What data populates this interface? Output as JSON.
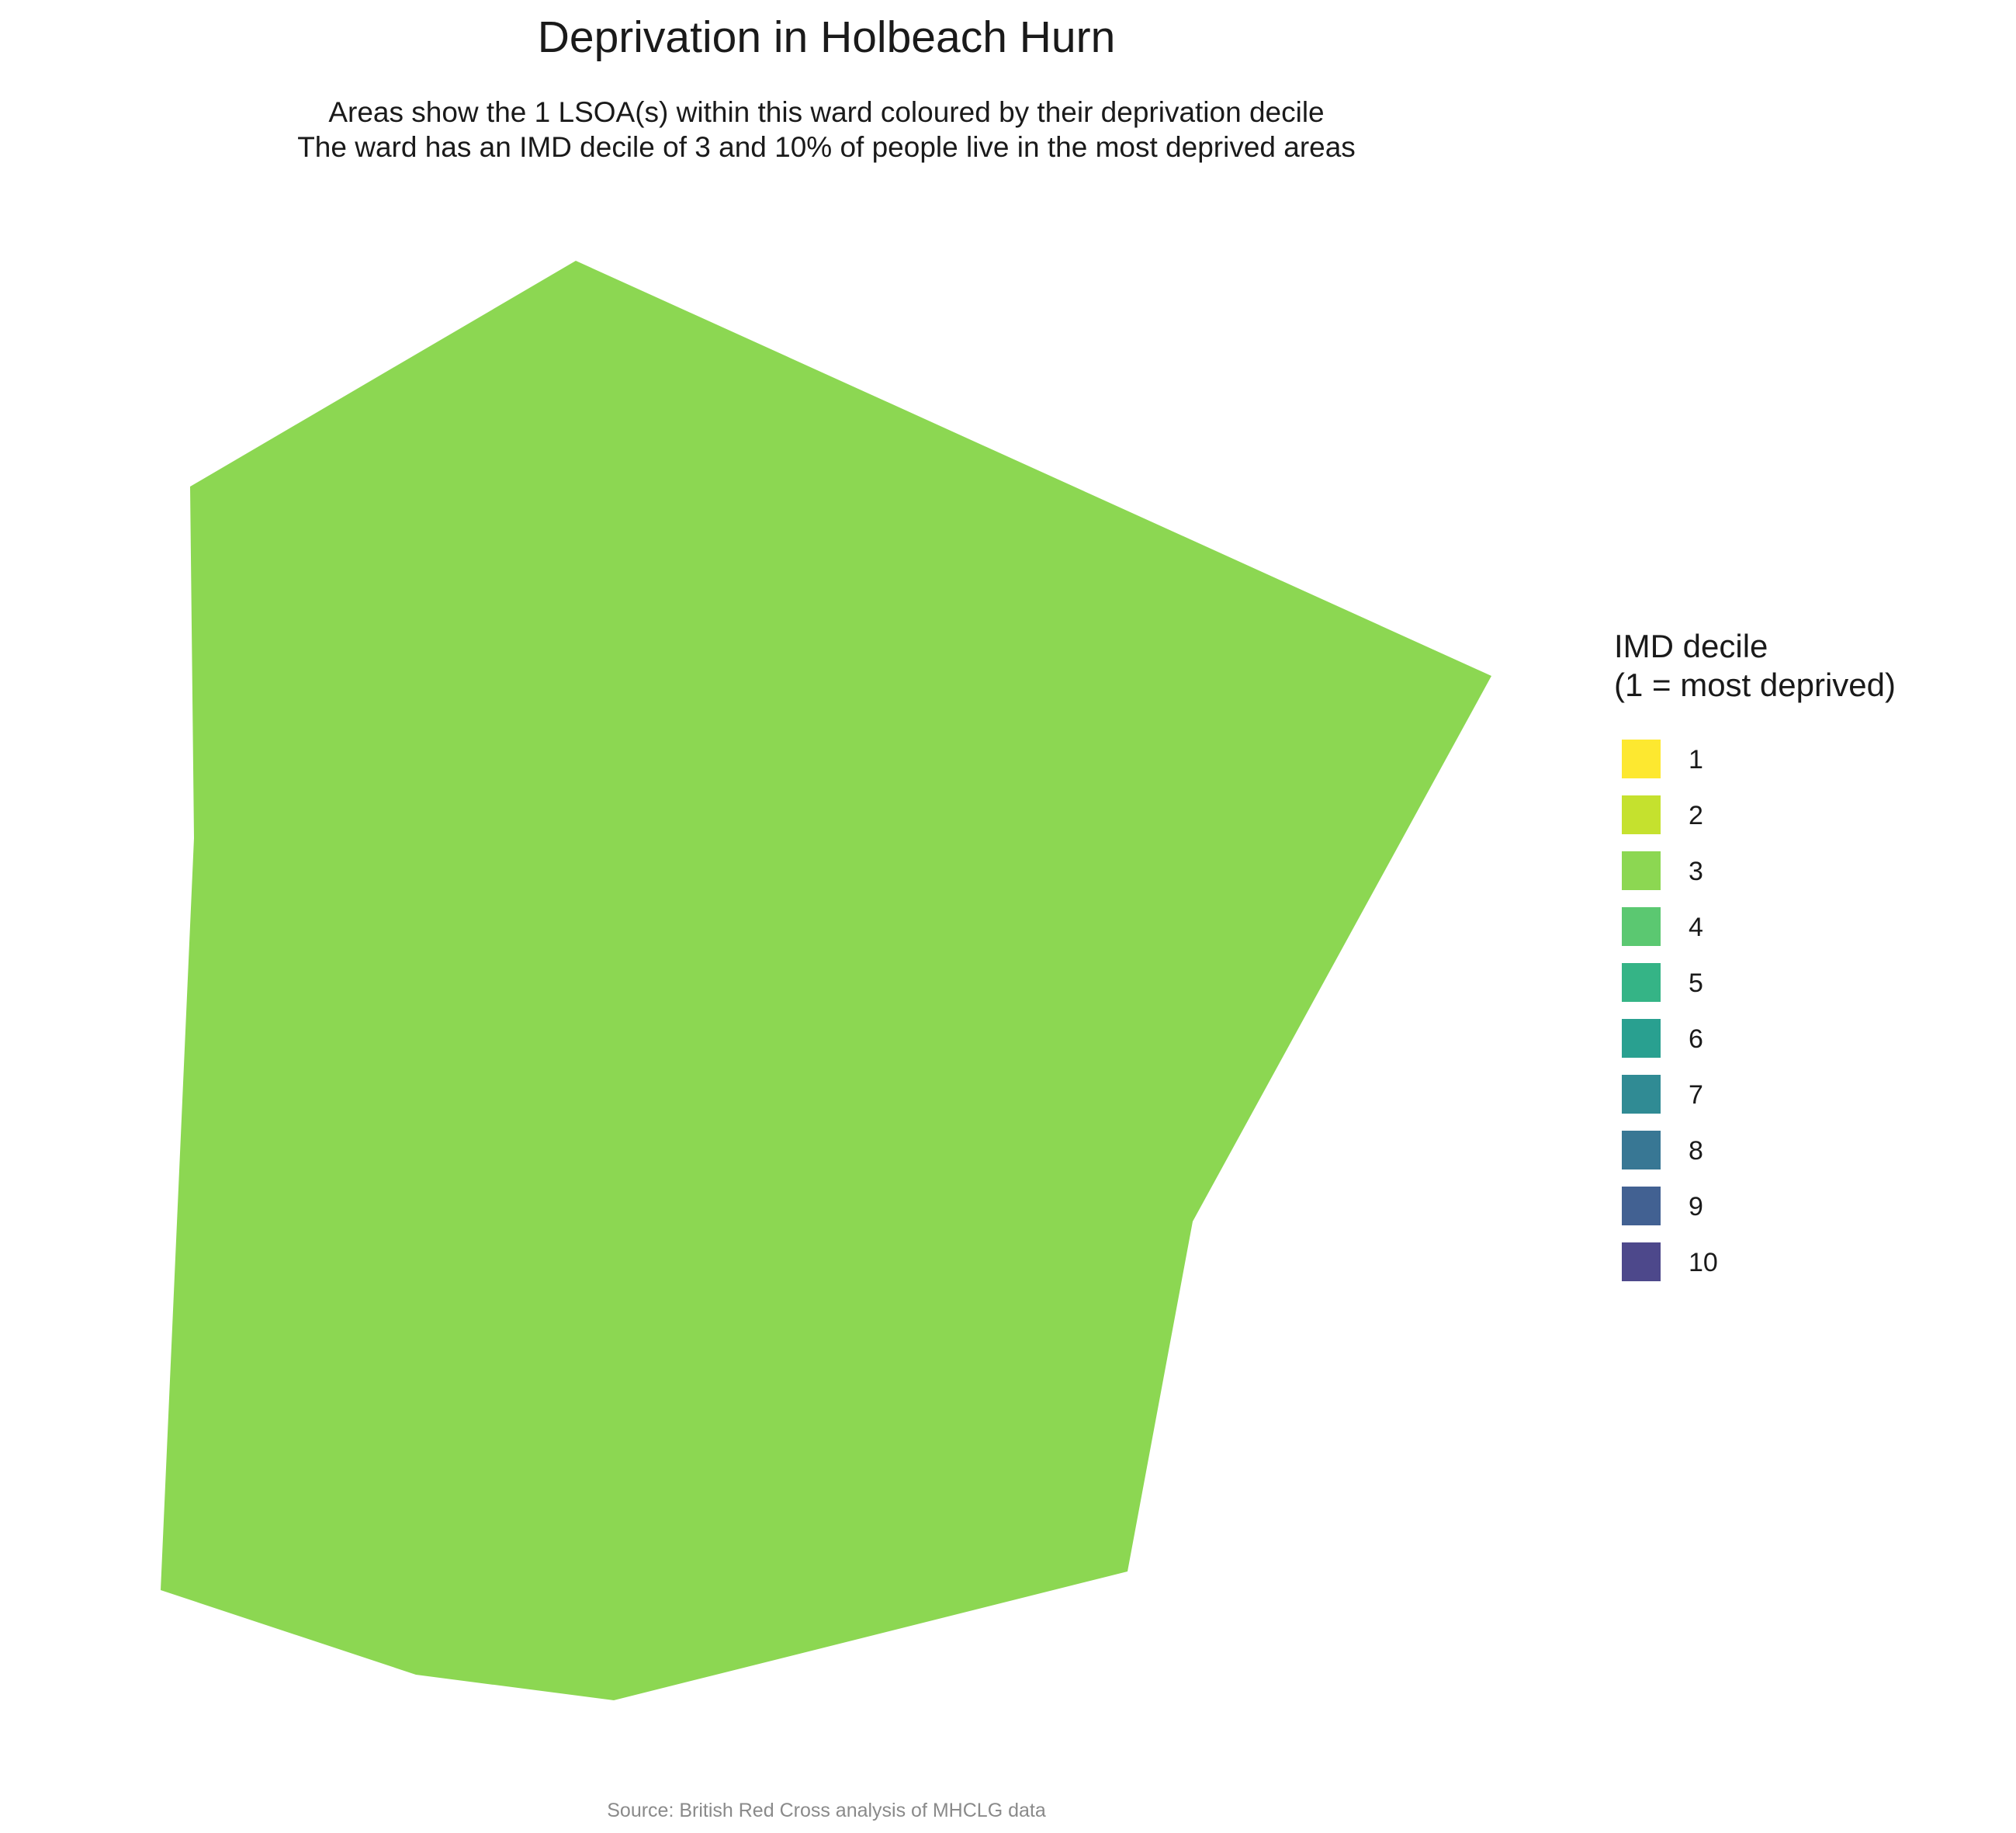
{
  "title": "Deprivation in Holbeach Hurn",
  "subtitle_line1": "Areas show the 1 LSOA(s) within this ward coloured by their deprivation decile",
  "subtitle_line2": "The ward has an IMD decile of 3 and 10% of people live in the most deprived areas",
  "caption": "Source: British Red Cross analysis of MHCLG data",
  "legend": {
    "title_line1": "IMD decile",
    "title_line2": "(1 = most deprived)",
    "items": [
      {
        "label": "1",
        "color": "#fde725"
      },
      {
        "label": "2",
        "color": "#c2df23"
      },
      {
        "label": "3",
        "color": "#86d549"
      },
      {
        "label": "4",
        "color": "#52c569"
      },
      {
        "label": "5",
        "color": "#2ab07f"
      },
      {
        "label": "6",
        "color": "#1e9b8a"
      },
      {
        "label": "7",
        "color": "#25858e"
      },
      {
        "label": "8",
        "color": "#2d708e"
      },
      {
        "label": "9",
        "color": "#38588c"
      },
      {
        "label": "10",
        "color": "#433e85"
      }
    ]
  },
  "map": {
    "areas": [
      {
        "decile": 3
      }
    ]
  }
}
